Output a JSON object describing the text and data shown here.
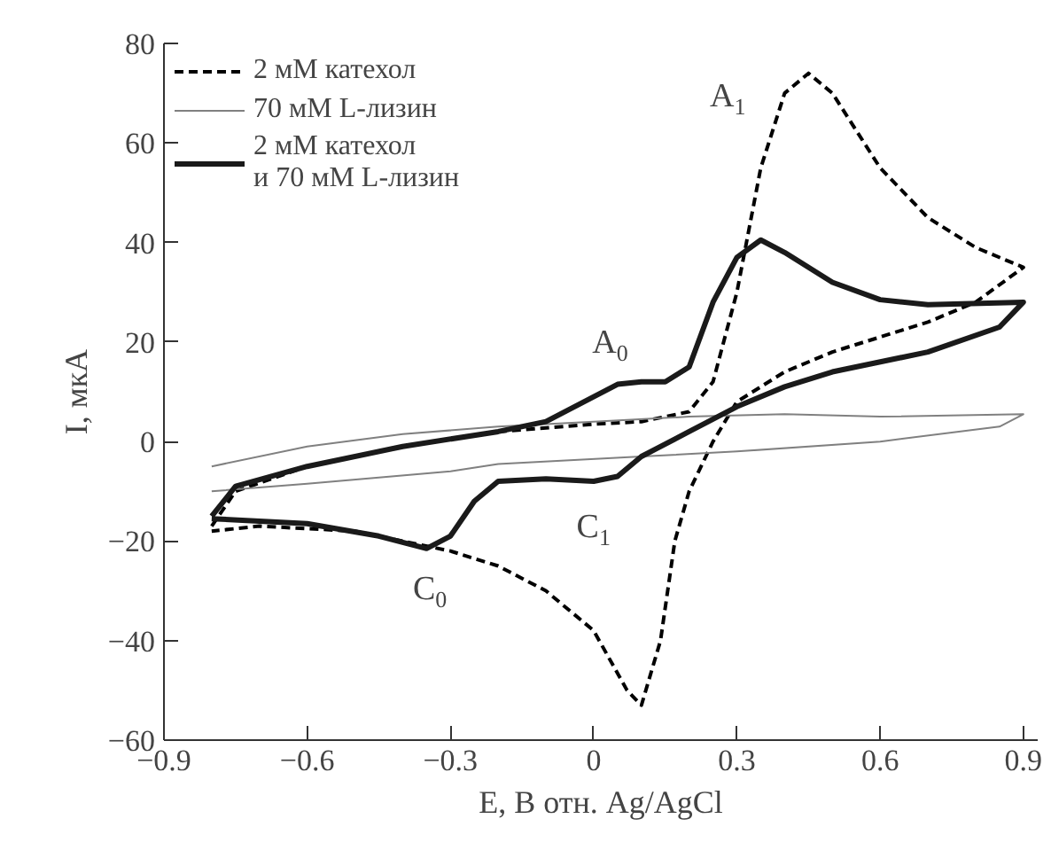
{
  "chart_data": {
    "type": "line",
    "xlabel": "E, В отн. Ag/AgCl",
    "ylabel": "I, мкА",
    "xlim": [
      -0.9,
      0.93
    ],
    "ylim": [
      -60,
      80
    ],
    "xticks": [
      {
        "value": -0.9,
        "label": "−0.9"
      },
      {
        "value": -0.6,
        "label": "−0.6"
      },
      {
        "value": -0.3,
        "label": "−0.3"
      },
      0,
      0.3,
      0.6,
      0.9
    ],
    "yticks": [
      {
        "value": -60,
        "label": "−60"
      },
      {
        "value": -40,
        "label": "−40"
      },
      {
        "value": -20,
        "label": "−20"
      },
      0,
      20,
      40,
      60,
      80
    ],
    "grid": false,
    "legend": "top left",
    "marker": "none",
    "series": [
      {
        "name": "2 мМ катехол",
        "color": "#000000",
        "line_style": "dashed",
        "x": [
          -0.8,
          -0.75,
          -0.6,
          -0.4,
          -0.2,
          0,
          0.1,
          0.2,
          0.25,
          0.3,
          0.35,
          0.4,
          0.45,
          0.5,
          0.6,
          0.7,
          0.8,
          0.9,
          0.8,
          0.7,
          0.6,
          0.5,
          0.4,
          0.3,
          0.25,
          0.2,
          0.17,
          0.14,
          0.1,
          0.07,
          0.0,
          -0.1,
          -0.2,
          -0.3,
          -0.5,
          -0.7,
          -0.8
        ],
        "values": [
          -17,
          -10,
          -5,
          -1,
          2,
          3.5,
          4,
          6,
          12,
          30,
          55,
          70,
          74,
          70,
          55,
          45,
          39,
          35,
          28,
          24,
          21,
          18,
          14,
          8,
          0,
          -10,
          -20,
          -40,
          -53,
          -50,
          -38,
          -30,
          -25,
          -22,
          -18,
          -17,
          -18
        ]
      },
      {
        "name": "70 мМ L-лизин",
        "color": "#808080",
        "line_style": "solid",
        "x": [
          -0.8,
          -0.6,
          -0.4,
          -0.2,
          0,
          0.2,
          0.4,
          0.6,
          0.9,
          0.85,
          0.6,
          0.3,
          0.1,
          -0.2,
          -0.3,
          -0.6,
          -0.8
        ],
        "values": [
          -5,
          -1,
          1.5,
          3,
          4,
          5,
          5.5,
          5,
          5.5,
          3,
          0,
          -2,
          -3,
          -4.5,
          -6,
          -8.5,
          -10
        ]
      },
      {
        "name": "2 мМ катехол\nи 70 мМ L-лизин",
        "color": "#1a1a1a",
        "line_style": "solid",
        "x": [
          -0.8,
          -0.75,
          -0.6,
          -0.4,
          -0.2,
          -0.1,
          0,
          0.05,
          0.1,
          0.15,
          0.2,
          0.25,
          0.3,
          0.35,
          0.4,
          0.5,
          0.6,
          0.7,
          0.9,
          0.85,
          0.7,
          0.5,
          0.4,
          0.3,
          0.2,
          0.1,
          0.05,
          0.0,
          -0.1,
          -0.2,
          -0.25,
          -0.3,
          -0.35,
          -0.45,
          -0.6,
          -0.8
        ],
        "values": [
          -15,
          -9,
          -5,
          -1,
          2,
          4,
          9,
          11.5,
          12,
          12,
          15,
          28,
          37,
          40.5,
          38,
          32,
          28.5,
          27.5,
          28,
          23,
          18,
          14,
          11,
          7,
          2,
          -3,
          -7,
          -8,
          -7.5,
          -8,
          -12,
          -19,
          -21.5,
          -19,
          -16.5,
          -15.5
        ]
      }
    ],
    "annotations": [
      {
        "text": "A$_{1}$",
        "x": 0.45,
        "y": 74
      },
      {
        "text": "A$_{0}$",
        "x": 0.1,
        "y": 12
      },
      {
        "text": "C$_{1}$",
        "x": 0.0,
        "y": -8
      },
      {
        "text": "C$_{0}$",
        "x": -0.35,
        "y": -21.5
      }
    ]
  }
}
